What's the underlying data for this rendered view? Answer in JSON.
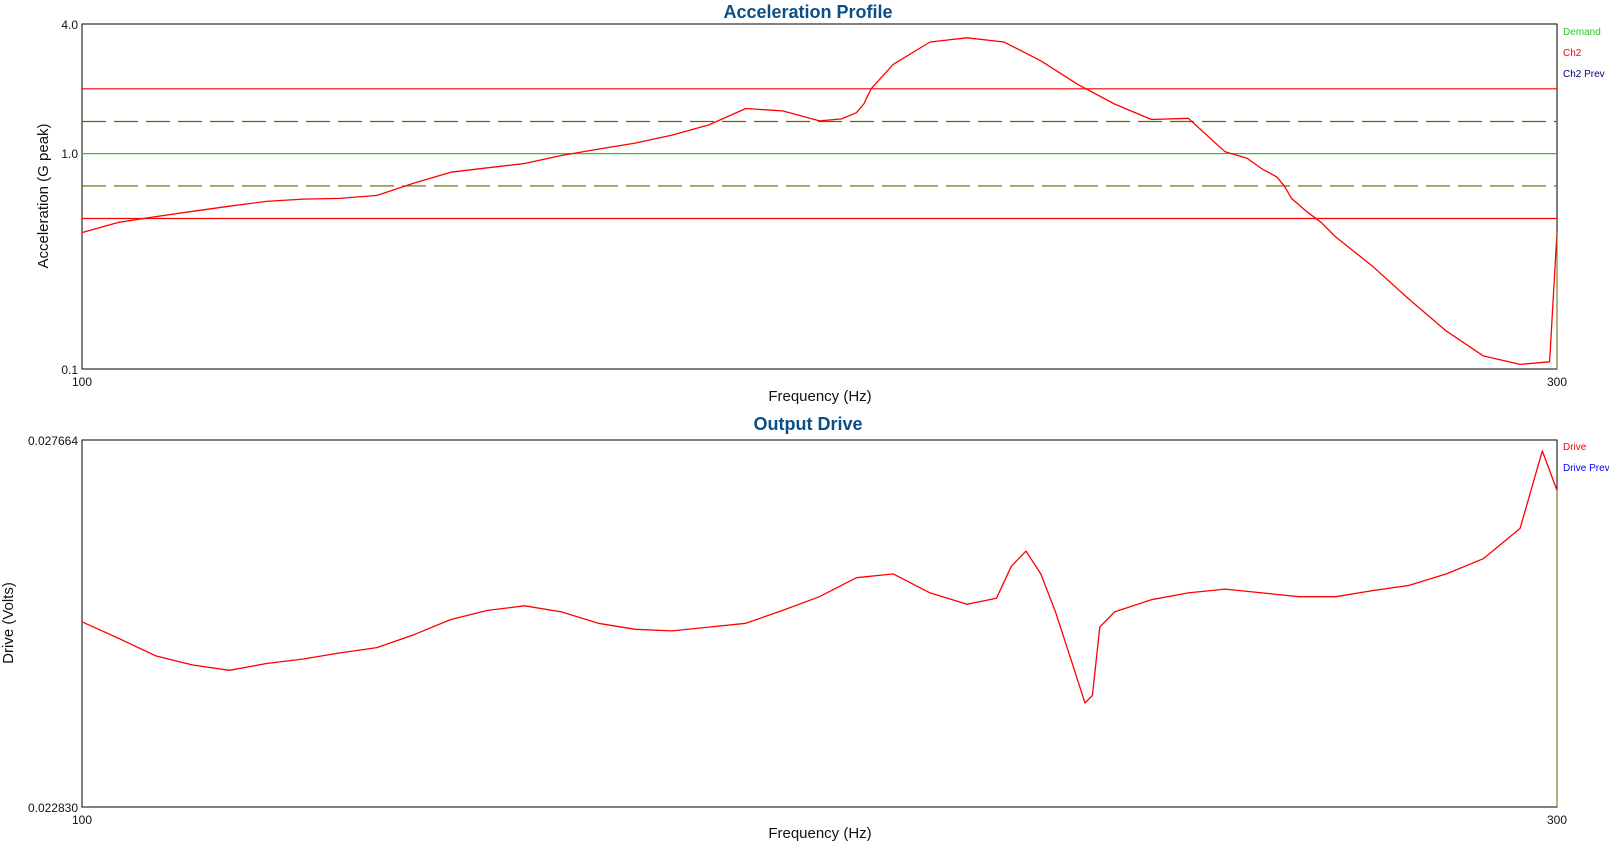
{
  "colors": {
    "demand": "#22cc22",
    "ch2": "#ff0000",
    "ch2_prev": "#000080",
    "drive": "#ff0000",
    "drive_prev": "#0000ff",
    "tolerance": "#666600",
    "title": "#0b4f86",
    "frame": "#000000"
  },
  "chart_data": [
    {
      "type": "line",
      "title": "Acceleration Profile",
      "xlabel": "Frequency (Hz)",
      "ylabel": "Acceleration (G peak)",
      "xlim": [
        100,
        300
      ],
      "ylim": [
        0.1,
        4.0
      ],
      "yscale": "log",
      "xticks": [
        "100",
        "300"
      ],
      "yticks": [
        "4.0",
        "1.0",
        "0.1"
      ],
      "legend": [
        "Demand",
        "Ch2",
        "Ch2 Prev"
      ],
      "legend_position": "right",
      "grid": false,
      "reference_lines": [
        {
          "name": "Demand",
          "y": 1.0,
          "style": "solid"
        },
        {
          "name": "Warning upper",
          "y": 1.41,
          "style": "dashed"
        },
        {
          "name": "Warning lower",
          "y": 0.708,
          "style": "dashed"
        },
        {
          "name": "Abort upper",
          "y": 2.0,
          "style": "solid"
        },
        {
          "name": "Abort lower",
          "y": 0.5,
          "style": "solid"
        }
      ],
      "series": [
        {
          "name": "Ch2",
          "x": [
            100,
            105,
            110,
            115,
            120,
            125,
            130,
            135,
            140,
            145,
            150,
            155,
            160,
            165,
            170,
            175,
            180,
            185,
            190,
            195,
            200,
            203,
            205,
            206,
            207,
            210,
            215,
            220,
            225,
            230,
            235,
            240,
            245,
            250,
            255,
            258,
            260,
            262,
            263,
            264,
            266,
            268,
            270,
            275,
            280,
            285,
            290,
            295,
            299,
            300
          ],
          "y": [
            0.43,
            0.48,
            0.51,
            0.54,
            0.57,
            0.6,
            0.615,
            0.62,
            0.64,
            0.73,
            0.82,
            0.86,
            0.9,
            0.98,
            1.05,
            1.12,
            1.22,
            1.36,
            1.62,
            1.58,
            1.42,
            1.45,
            1.55,
            1.7,
            2.0,
            2.6,
            3.3,
            3.45,
            3.3,
            2.7,
            2.1,
            1.7,
            1.44,
            1.46,
            1.02,
            0.95,
            0.85,
            0.78,
            0.71,
            0.62,
            0.54,
            0.48,
            0.41,
            0.3,
            0.21,
            0.15,
            0.115,
            0.105,
            0.108,
            0.43
          ]
        }
      ]
    },
    {
      "type": "line",
      "title": "Output Drive",
      "xlabel": "Frequency (Hz)",
      "ylabel": "Drive (Volts)",
      "xlim": [
        100,
        300
      ],
      "ylim": [
        0.02283,
        0.027664
      ],
      "yscale": "linear",
      "xticks": [
        "100",
        "300"
      ],
      "yticks": [
        "0.027664",
        "0.022830"
      ],
      "legend": [
        "Drive",
        "Drive Prev"
      ],
      "legend_position": "right",
      "grid": false,
      "series": [
        {
          "name": "Drive",
          "x": [
            100,
            105,
            110,
            115,
            120,
            125,
            130,
            135,
            140,
            145,
            150,
            155,
            160,
            165,
            170,
            175,
            180,
            185,
            190,
            195,
            200,
            205,
            210,
            215,
            220,
            224,
            226,
            228,
            230,
            232,
            234,
            236,
            237,
            238,
            240,
            245,
            250,
            255,
            260,
            265,
            270,
            275,
            280,
            285,
            290,
            295,
            298,
            300
          ],
          "y": [
            0.02527,
            0.02505,
            0.02482,
            0.0247,
            0.02463,
            0.02472,
            0.02478,
            0.02486,
            0.02493,
            0.0251,
            0.0253,
            0.02542,
            0.02548,
            0.0254,
            0.02525,
            0.02517,
            0.02515,
            0.0252,
            0.02525,
            0.02542,
            0.0256,
            0.02585,
            0.0259,
            0.02565,
            0.0255,
            0.02558,
            0.026,
            0.0262,
            0.0259,
            0.0254,
            0.0248,
            0.0242,
            0.0243,
            0.0252,
            0.0254,
            0.02556,
            0.02565,
            0.0257,
            0.02565,
            0.0256,
            0.0256,
            0.02568,
            0.02575,
            0.0259,
            0.0261,
            0.0265,
            0.02752,
            0.027
          ]
        }
      ]
    }
  ]
}
